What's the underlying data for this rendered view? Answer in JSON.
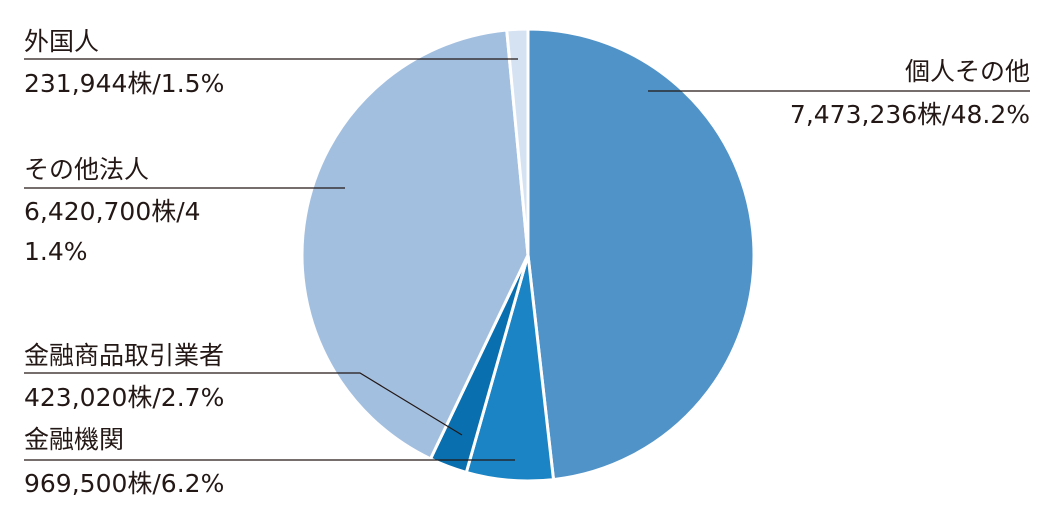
{
  "chart_data": {
    "type": "pie",
    "categories": [
      "個人その他",
      "金融機関",
      "金融商品取引業者",
      "その他法人",
      "外国人"
    ],
    "values": [
      48.2,
      6.2,
      2.7,
      41.4,
      1.5
    ],
    "value_labels": [
      "7,473,236株/48.2%",
      "969,500株/6.2%",
      "423,020株/2.7%",
      "6,420,700株/41.4%",
      "231,944株/1.5%"
    ],
    "colors": [
      "#4f93c8",
      "#1a84c4",
      "#0a6faf",
      "#a3bfe0",
      "#d5e2f2"
    ]
  }
}
